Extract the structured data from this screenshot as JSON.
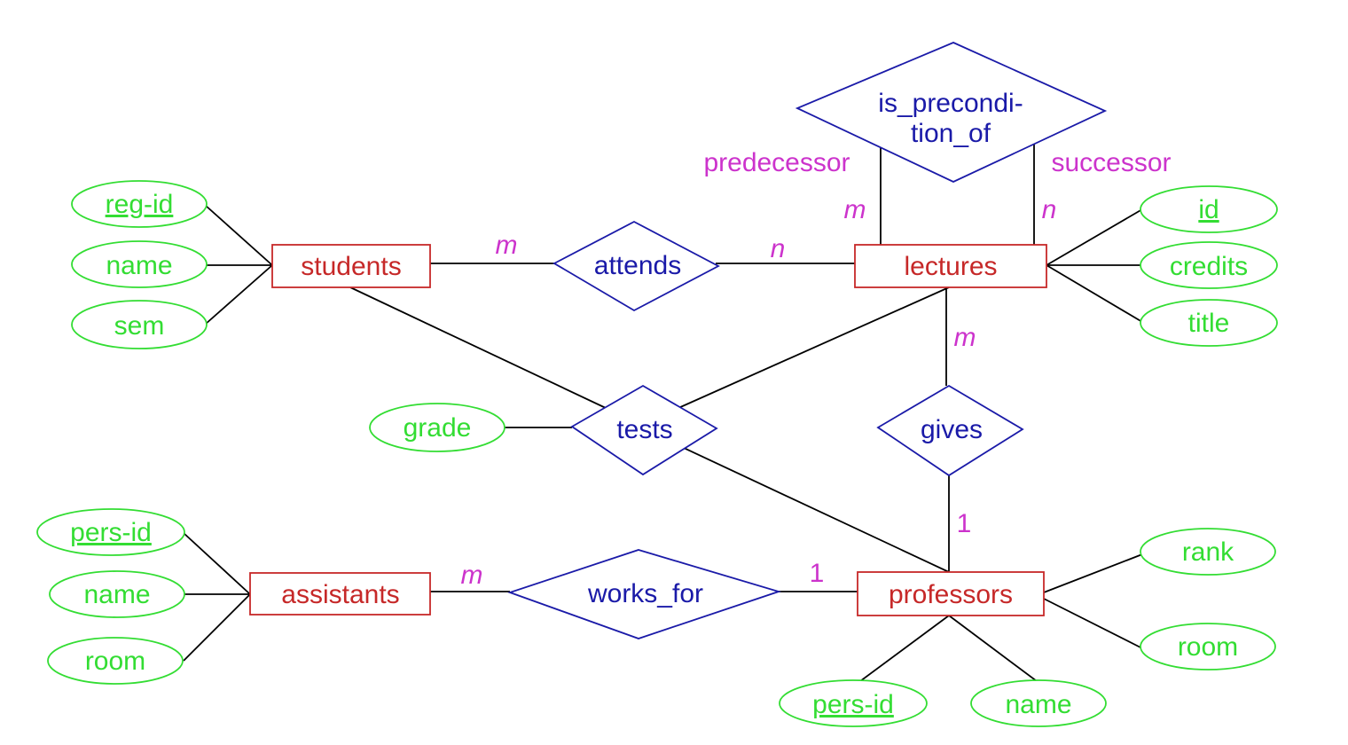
{
  "colors": {
    "entity": "#c62828",
    "relationship": "#1a1aa8",
    "attribute": "#33dd33",
    "cardinality": "#cc33cc",
    "connector": "#000000"
  },
  "entities": {
    "students": "students",
    "lectures": "lectures",
    "assistants": "assistants",
    "professors": "professors"
  },
  "relationships": {
    "attends": "attends",
    "precondition_line1": "is_precondi-",
    "precondition_line2": "tion_of",
    "tests": "tests",
    "gives": "gives",
    "works_for": "works_for"
  },
  "attributes": {
    "students": {
      "reg_id": "reg-id",
      "name": "name",
      "sem": "sem"
    },
    "lectures": {
      "id": "id",
      "credits": "credits",
      "title": "title"
    },
    "tests": {
      "grade": "grade"
    },
    "assistants": {
      "pers_id": "pers-id",
      "name": "name",
      "room": "room"
    },
    "professors": {
      "rank": "rank",
      "room": "room",
      "pers_id": "pers-id",
      "name": "name"
    }
  },
  "roles": {
    "predecessor": "predecessor",
    "successor": "successor"
  },
  "cardinalities": {
    "students_attends": "m",
    "attends_lectures": "n",
    "predecessor": "m",
    "successor": "n",
    "lectures_gives": "m",
    "gives_professors": "1",
    "assistants_works_for": "m",
    "works_for_professors": "1"
  }
}
